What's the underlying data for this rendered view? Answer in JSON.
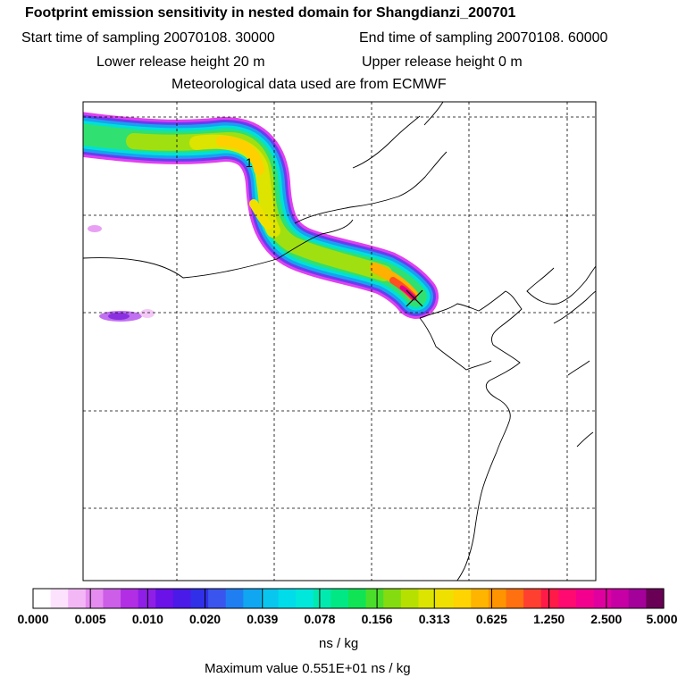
{
  "header": {
    "title": "Footprint emission sensitivity in nested domain for Shangdianzi_200701",
    "start_sampling": "Start time of sampling 20070108. 30000",
    "end_sampling": "End time of sampling 20070108. 60000",
    "lower_release": "Lower release height   20 m",
    "upper_release": "Upper release height    0 m",
    "met_data": "Meteorological data used are from ECMWF"
  },
  "map": {
    "plume_label": "1",
    "receptor_marker": "x-icon"
  },
  "colorbar": {
    "tick_labels": [
      "0.000",
      "0.005",
      "0.010",
      "0.020",
      "0.039",
      "0.078",
      "0.156",
      "0.313",
      "0.625",
      "1.250",
      "2.500",
      "5.000"
    ],
    "colors": [
      "#ffffff",
      "#fde2fd",
      "#f4b7f6",
      "#e68cf0",
      "#cc5ee8",
      "#b22ee4",
      "#8f1ee6",
      "#6a12e8",
      "#4a1ae8",
      "#3030e8",
      "#3a55ee",
      "#1f7ff2",
      "#10a6f2",
      "#08c6ee",
      "#00dcea",
      "#00e8dc",
      "#00eab0",
      "#00e884",
      "#10e454",
      "#4ade2a",
      "#84dc10",
      "#b6e000",
      "#dce400",
      "#f0e000",
      "#ffd400",
      "#ffb400",
      "#ff9400",
      "#ff7010",
      "#ff4030",
      "#ff1a48",
      "#ff0a70",
      "#f4008e",
      "#e000a0",
      "#c600a4",
      "#a4009a",
      "#6a0056"
    ],
    "units": "ns / kg"
  },
  "footer": {
    "max_value": "Maximum value  0.551E+01 ns / kg"
  }
}
